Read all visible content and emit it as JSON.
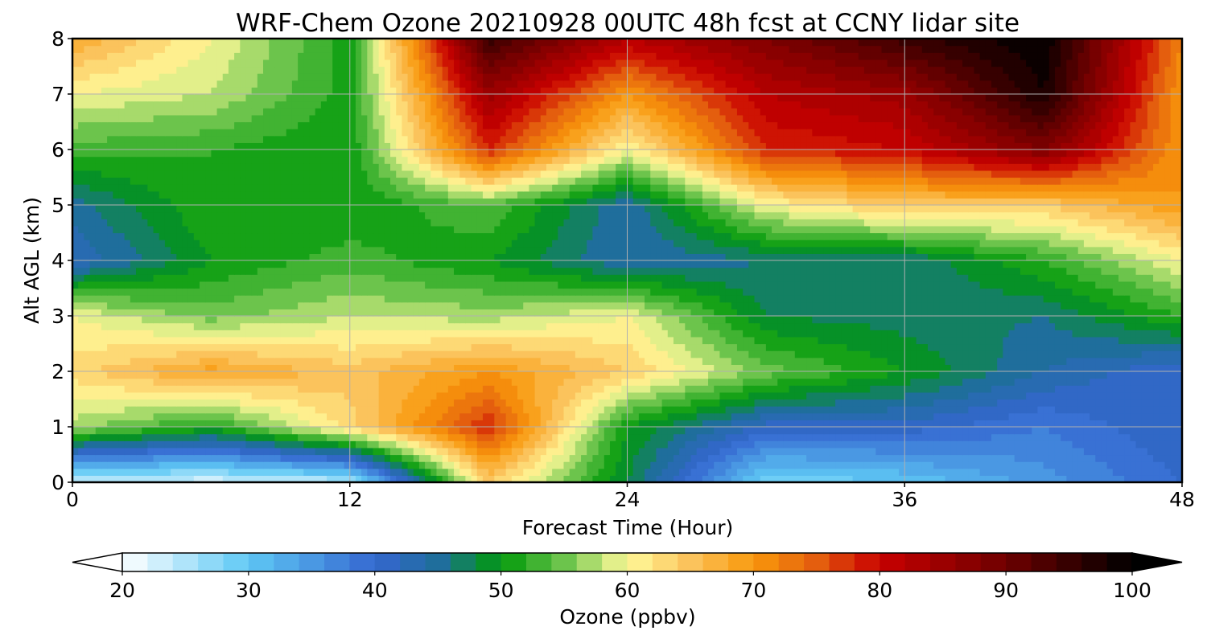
{
  "chart_data": {
    "type": "heatmap",
    "title": "WRF-Chem Ozone  20210928 00UTC 48h fcst at CCNY lidar site",
    "xlabel": "Forecast Time (Hour)",
    "ylabel": "Alt AGL (km)",
    "xlim": [
      0,
      48
    ],
    "ylim": [
      0,
      8
    ],
    "x_ticks": [
      0,
      12,
      24,
      36,
      48
    ],
    "y_ticks": [
      0,
      1,
      2,
      3,
      4,
      5,
      6,
      7,
      8
    ],
    "grid": true,
    "x": [
      0,
      6,
      12,
      18,
      24,
      30,
      36,
      42,
      48
    ],
    "y": [
      0,
      1,
      2,
      3,
      4,
      5,
      6,
      7,
      8
    ],
    "z_ppbv": [
      [
        23,
        22,
        24,
        64,
        48,
        28,
        30,
        35,
        40
      ],
      [
        57,
        51,
        63,
        78,
        50,
        41,
        41,
        38,
        42
      ],
      [
        63,
        69,
        65,
        70,
        64,
        55,
        50,
        44,
        40
      ],
      [
        60,
        55,
        58,
        57,
        60,
        48,
        47,
        46,
        52
      ],
      [
        42,
        50,
        53,
        50,
        44,
        46,
        46,
        52,
        60
      ],
      [
        45,
        52,
        50,
        54,
        44,
        60,
        65,
        64,
        70
      ],
      [
        53,
        52,
        50,
        78,
        60,
        78,
        80,
        88,
        70
      ],
      [
        60,
        58,
        51,
        85,
        70,
        82,
        85,
        98,
        70
      ],
      [
        68,
        60,
        51,
        95,
        82,
        88,
        95,
        100,
        72
      ]
    ],
    "colorbar": {
      "label": "Ozone  (ppbv)",
      "min": 20,
      "max": 100,
      "ticks": [
        "20",
        "30",
        "40",
        "50",
        "60",
        "70",
        "80",
        "90",
        "100"
      ],
      "extend": "both"
    },
    "colormap": [
      [
        20,
        "#ffffff"
      ],
      [
        30,
        "#5ec8f5"
      ],
      [
        40,
        "#3567d0"
      ],
      [
        45,
        "#1f6e9c"
      ],
      [
        50,
        "#009a0a"
      ],
      [
        55,
        "#6cc44c"
      ],
      [
        60,
        "#fffa9a"
      ],
      [
        65,
        "#fbc35c"
      ],
      [
        70,
        "#f9990c"
      ],
      [
        75,
        "#e45e0e"
      ],
      [
        80,
        "#c80000"
      ],
      [
        90,
        "#6e0000"
      ],
      [
        100,
        "#000000"
      ]
    ]
  }
}
